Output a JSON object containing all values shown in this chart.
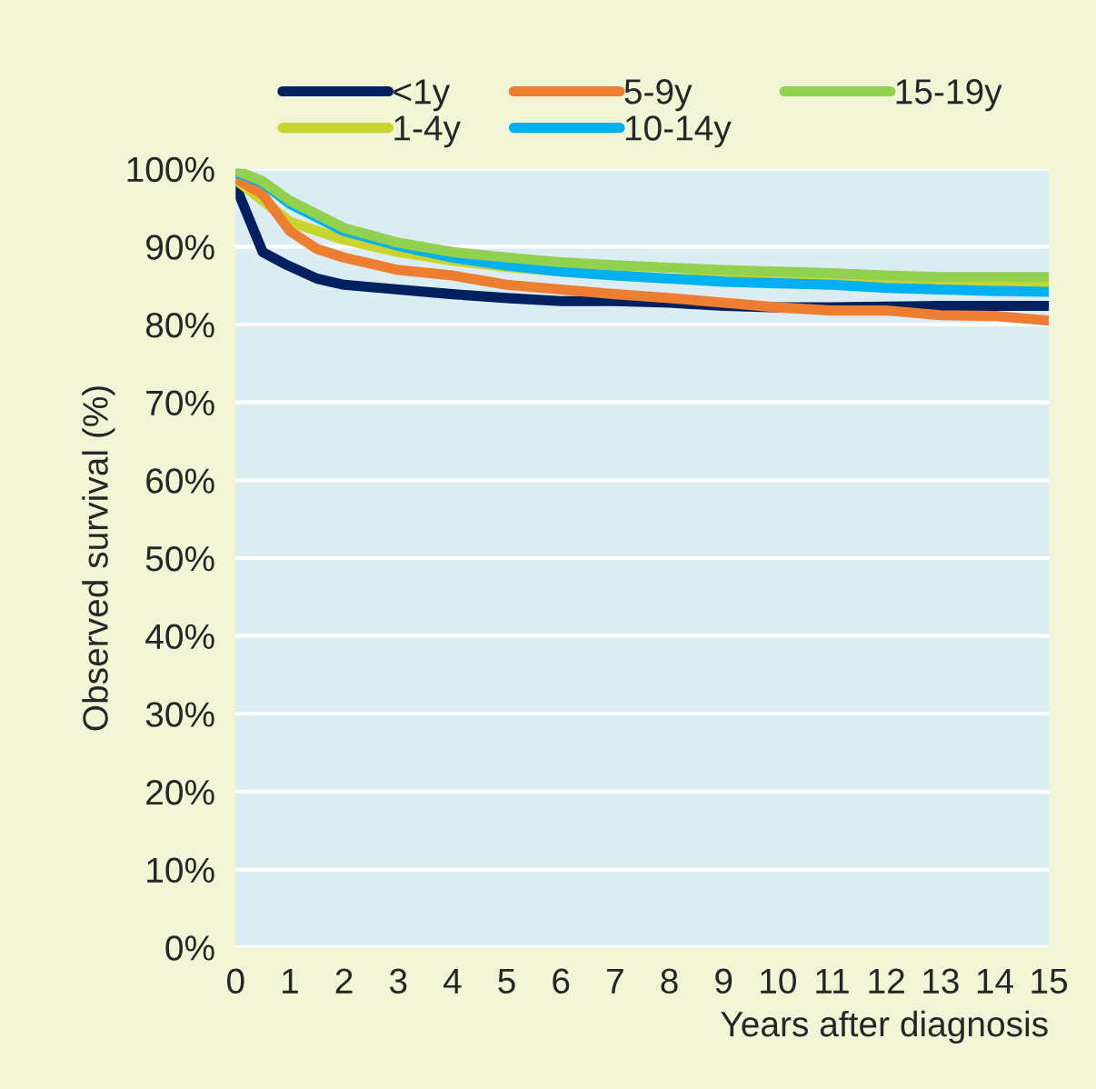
{
  "chart_data": {
    "type": "line",
    "xlabel": "Years after diagnosis",
    "ylabel": "Observed survival (%)",
    "xlim": [
      0,
      15
    ],
    "xticks": [
      0,
      1,
      2,
      3,
      4,
      5,
      6,
      7,
      8,
      9,
      10,
      11,
      12,
      13,
      14,
      15
    ],
    "ylim": [
      0,
      100
    ],
    "yticks": [
      {
        "value": 0,
        "label": "0%"
      },
      {
        "value": 10,
        "label": "10%"
      },
      {
        "value": 20,
        "label": "20%"
      },
      {
        "value": 30,
        "label": "30%"
      },
      {
        "value": 40,
        "label": "40%"
      },
      {
        "value": 50,
        "label": "50%"
      },
      {
        "value": 60,
        "label": "60%"
      },
      {
        "value": 70,
        "label": "70%"
      },
      {
        "value": 80,
        "label": "80%"
      },
      {
        "value": 90,
        "label": "90%"
      },
      {
        "value": 100,
        "label": "100%"
      }
    ],
    "grid": "y",
    "legend": "top",
    "marker": "none",
    "line_style": "solid",
    "series": [
      {
        "name": "<1y",
        "color": "#002060",
        "x": [
          0,
          0.5,
          0.9,
          1.5,
          2,
          3,
          4,
          5,
          6,
          7,
          8,
          9,
          10,
          11,
          12,
          13,
          14,
          15
        ],
        "values": [
          97.8,
          89.3,
          87.8,
          85.9,
          85.1,
          84.5,
          83.9,
          83.4,
          83.0,
          83.0,
          82.8,
          82.4,
          82.2,
          82.2,
          82.3,
          82.4,
          82.4,
          82.4
        ]
      },
      {
        "name": "1-4y",
        "color": "#c9d42e",
        "x": [
          0,
          1,
          2,
          3,
          4,
          5,
          6,
          7,
          8,
          9,
          10,
          11,
          12,
          13,
          14,
          15
        ],
        "values": [
          98.6,
          93.2,
          90.9,
          89.3,
          88.2,
          87.4,
          86.8,
          86.3,
          85.9,
          85.9,
          85.6,
          85.5,
          85.5,
          85.5,
          85.3,
          85.1
        ]
      },
      {
        "name": "5-9y",
        "color": "#ed7d31",
        "x": [
          0,
          0.5,
          1,
          1.5,
          2,
          2.5,
          3,
          4,
          5,
          6,
          7,
          8,
          9,
          10,
          11,
          12,
          13,
          14,
          15
        ],
        "values": [
          98.8,
          96.7,
          92.0,
          89.7,
          88.6,
          87.8,
          87.0,
          86.3,
          85.1,
          84.5,
          83.9,
          83.4,
          82.8,
          82.2,
          81.8,
          81.8,
          81.2,
          81.1,
          80.5
        ]
      },
      {
        "name": "10-14y",
        "color": "#00b0f0",
        "x": [
          0,
          0.5,
          1,
          2,
          3,
          4,
          5,
          6,
          7,
          8,
          9,
          10,
          11,
          12,
          13,
          14,
          15
        ],
        "values": [
          99.6,
          98.2,
          95.5,
          92.0,
          90.1,
          88.6,
          87.6,
          86.8,
          86.3,
          85.9,
          85.5,
          85.3,
          85.1,
          84.7,
          84.5,
          84.3,
          84.2
        ]
      },
      {
        "name": "15-19y",
        "color": "#92d050",
        "x": [
          0,
          0.5,
          1,
          2,
          3,
          4,
          5,
          6,
          7,
          8,
          9,
          10,
          11,
          12,
          13,
          14,
          15
        ],
        "values": [
          99.8,
          98.4,
          95.9,
          92.4,
          90.5,
          89.3,
          88.6,
          88.0,
          87.6,
          87.3,
          87.0,
          86.8,
          86.6,
          86.3,
          86.1,
          86.1,
          86.1
        ]
      }
    ]
  }
}
